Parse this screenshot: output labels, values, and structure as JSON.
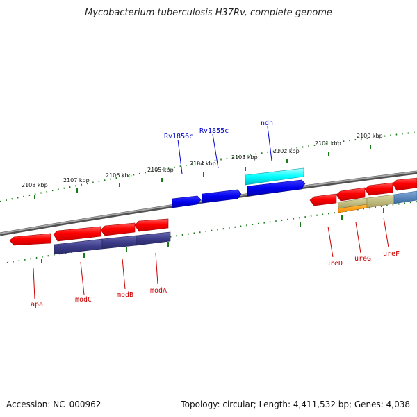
{
  "title": "Mycobacterium tuberculosis H37Rv, complete genome",
  "footer": {
    "accession": "Accession: NC_000962",
    "summary": "Topology: circular; Length: 4,411,532 bp; Genes: 4,038"
  },
  "ticks": [
    {
      "label": "2108 kbp"
    },
    {
      "label": "2107 kbp"
    },
    {
      "label": "2106 kbp"
    },
    {
      "label": "2105 kbp"
    },
    {
      "label": "2104 kbp"
    },
    {
      "label": "2103 kbp"
    },
    {
      "label": "2102 kbp"
    },
    {
      "label": "2101 kbp"
    },
    {
      "label": "2100 kbp"
    }
  ],
  "genes": [
    {
      "name": "Rv1856c",
      "strand": "forward",
      "color": "#0000cc"
    },
    {
      "name": "Rv1855c",
      "strand": "forward",
      "color": "#0000cc"
    },
    {
      "name": "ndh",
      "strand": "forward",
      "color": "#0000cc"
    },
    {
      "name": "apa",
      "strand": "reverse",
      "color": "#cc0000"
    },
    {
      "name": "modC",
      "strand": "reverse",
      "color": "#cc0000"
    },
    {
      "name": "modB",
      "strand": "reverse",
      "color": "#cc0000"
    },
    {
      "name": "modA",
      "strand": "reverse",
      "color": "#cc0000"
    },
    {
      "name": "ureD",
      "strand": "reverse",
      "color": "#cc0000"
    },
    {
      "name": "ureG",
      "strand": "reverse",
      "color": "#cc0000"
    },
    {
      "name": "ureF",
      "strand": "reverse",
      "color": "#cc0000"
    }
  ],
  "colors": {
    "backbone": "#808080",
    "forward_gene": "#0000ee",
    "reverse_gene": "#ee0000",
    "tick": "#1a7a1a",
    "cyan_feature": "#00e5ee",
    "purple_feature": "#3c3c8a",
    "orange_feature": "#ff9900",
    "khaki_feature": "#b8b070",
    "steelblue_feature": "#4a7fb8"
  }
}
